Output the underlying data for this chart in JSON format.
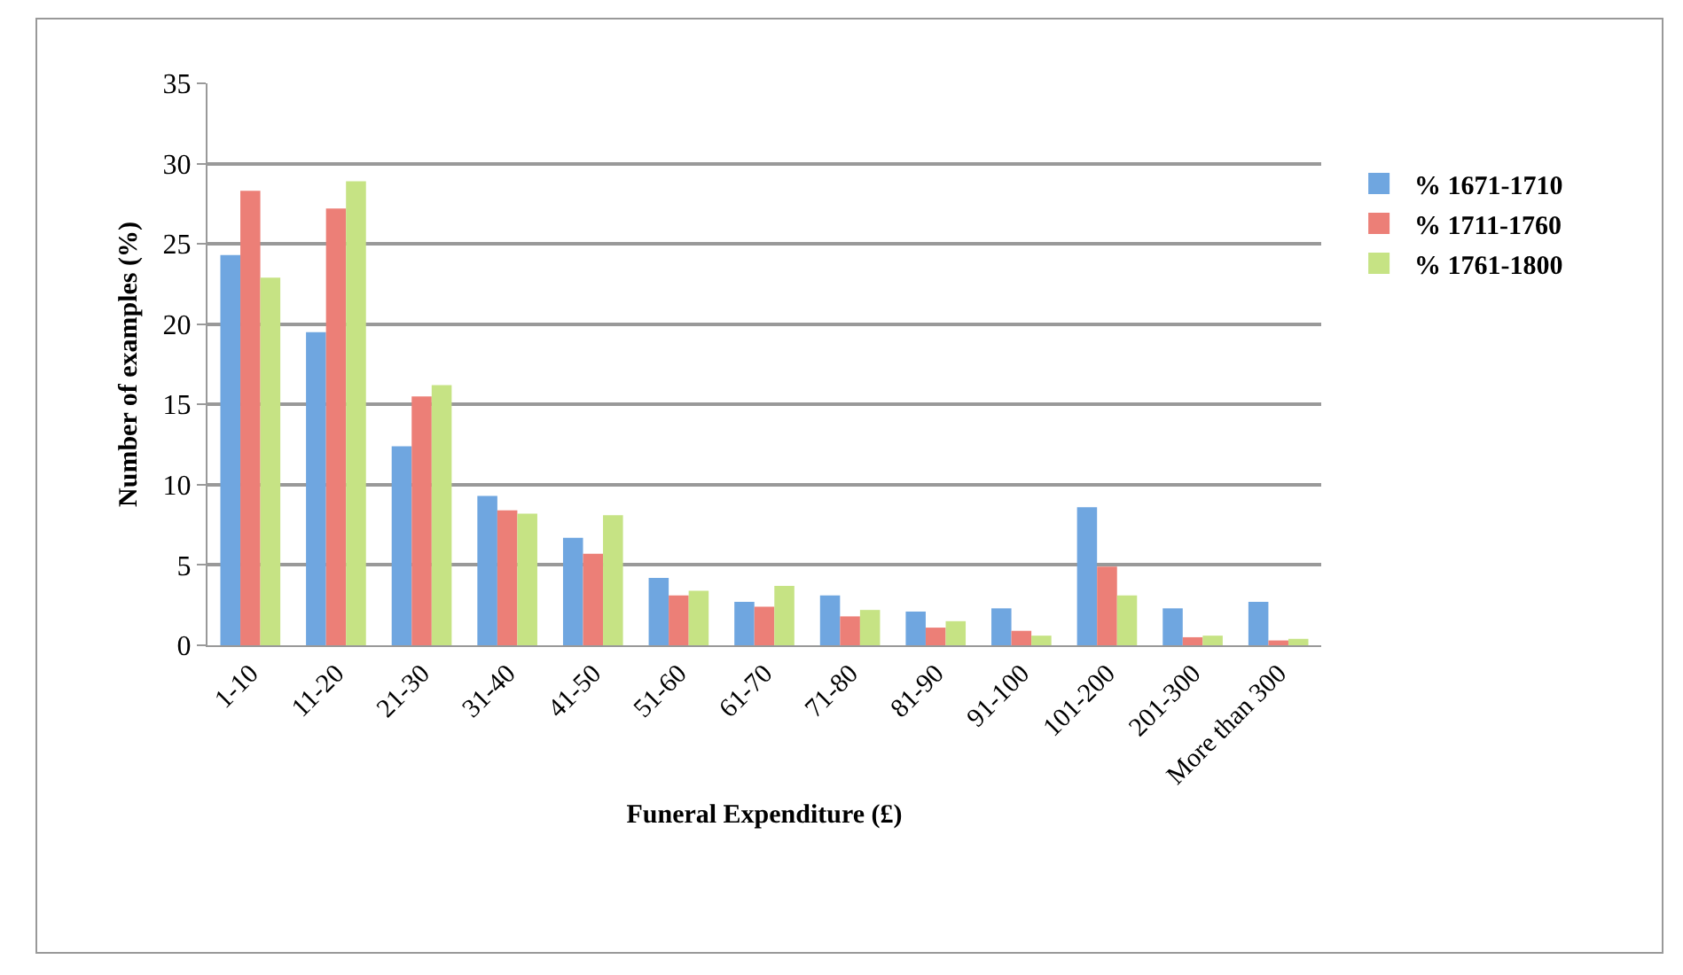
{
  "chart_data": {
    "type": "bar",
    "xlabel": "Funeral Expenditure (£)",
    "ylabel": "Number of examples (%)",
    "categories": [
      "1-10",
      "11-20",
      "21-30",
      "31-40",
      "41-50",
      "51-60",
      "61-70",
      "71-80",
      "81-90",
      "91-100",
      "101-200",
      "201-300",
      "More than 300"
    ],
    "series": [
      {
        "name": "% 1671-1710",
        "color": "#6fa6e0",
        "values": [
          24.3,
          19.5,
          12.4,
          9.3,
          6.7,
          4.2,
          2.7,
          3.1,
          2.1,
          2.3,
          8.6,
          2.3,
          2.7
        ]
      },
      {
        "name": "% 1711-1760",
        "color": "#ec7f77",
        "values": [
          28.3,
          27.2,
          15.5,
          8.4,
          5.7,
          3.1,
          2.4,
          1.8,
          1.1,
          0.9,
          4.9,
          0.5,
          0.3
        ]
      },
      {
        "name": "% 1761-1800",
        "color": "#c6e384",
        "values": [
          22.9,
          28.9,
          16.2,
          8.2,
          8.1,
          3.4,
          3.7,
          2.2,
          1.5,
          0.6,
          3.1,
          0.6,
          0.4
        ]
      }
    ],
    "ylim": [
      0,
      35
    ],
    "yticks": [
      0,
      5,
      10,
      15,
      20,
      25,
      30,
      35
    ],
    "grid": "y",
    "legend": "right"
  }
}
